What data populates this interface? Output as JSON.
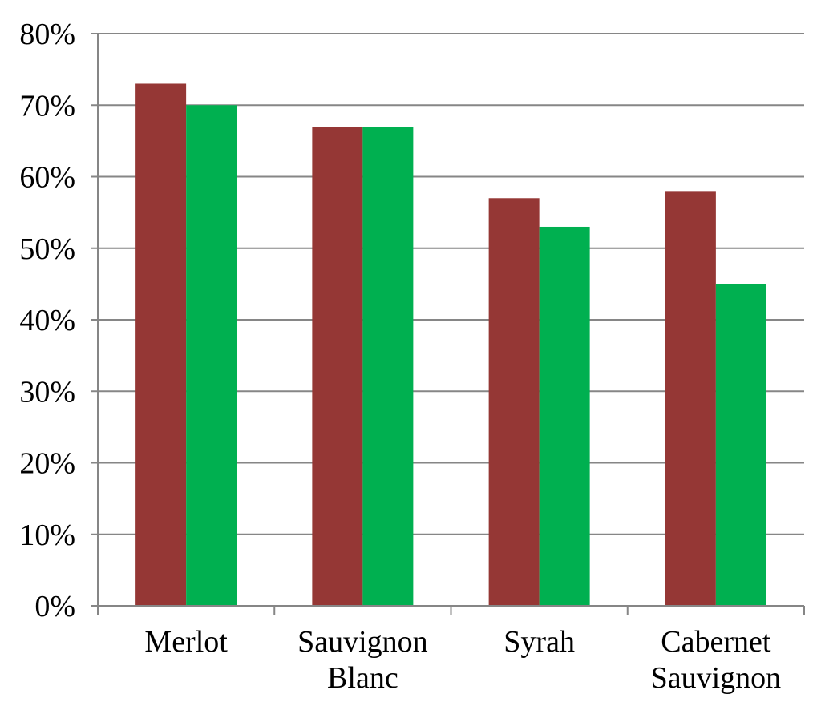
{
  "chart_data": {
    "type": "bar",
    "categories": [
      [
        "Merlot"
      ],
      [
        "Sauvignon",
        "Blanc"
      ],
      [
        "Syrah"
      ],
      [
        "Cabernet",
        "Sauvignon"
      ]
    ],
    "series": [
      {
        "values": [
          73,
          67,
          57,
          58
        ],
        "color": "#953735"
      },
      {
        "values": [
          70,
          67,
          53,
          45
        ],
        "color": "#00b050"
      }
    ],
    "ylim": [
      0,
      80
    ],
    "yticks": [
      0,
      10,
      20,
      30,
      40,
      50,
      60,
      70,
      80
    ],
    "ytick_suffix": "%",
    "grid": true,
    "gridline_color": "#868686",
    "title": "",
    "xlabel": "",
    "ylabel": ""
  }
}
